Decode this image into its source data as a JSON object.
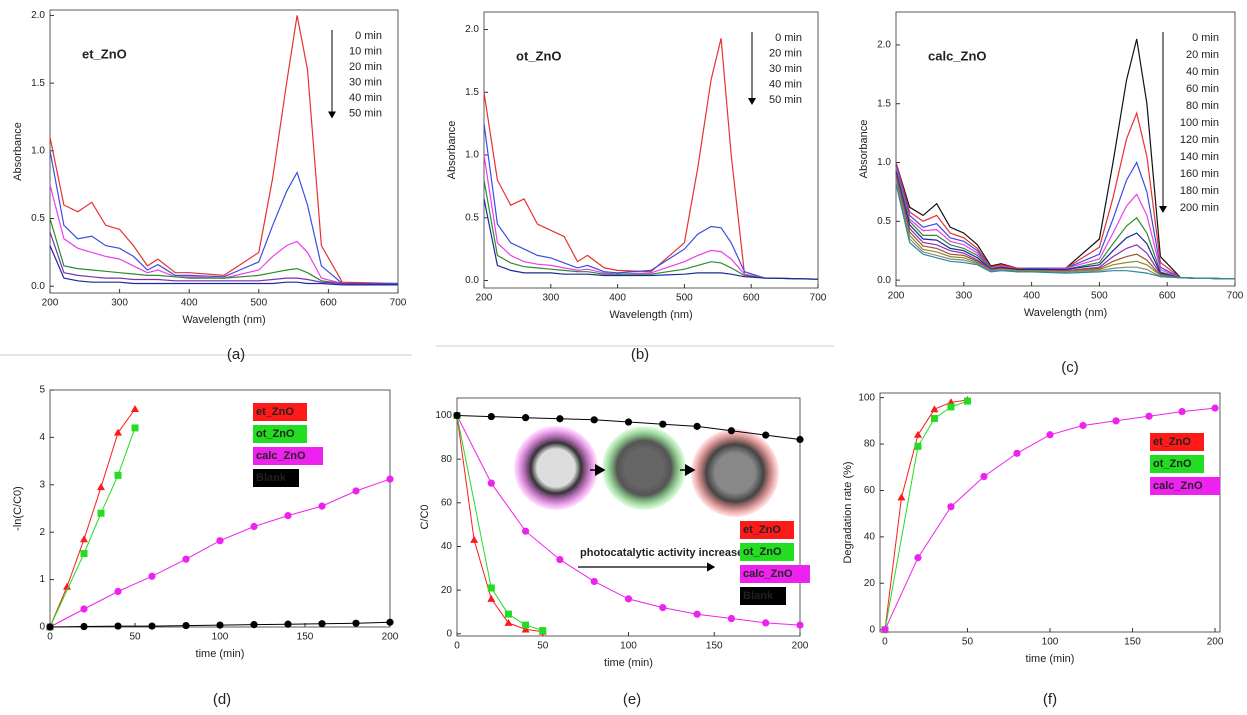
{
  "chart_data": [
    {
      "type": "line",
      "annotation": "et_ZnO",
      "caption": "(a)",
      "xlabel": "Wavelength (nm)",
      "ylabel": "Absorbance",
      "xlim": [
        200,
        700
      ],
      "ylim": [
        -0.05,
        2.04
      ],
      "xticks": [
        200,
        300,
        400,
        500,
        600,
        700
      ],
      "yticks": [
        {
          "value": 0,
          "label": "0.0"
        },
        0.5,
        {
          "value": 1,
          "label": "1.0"
        },
        1.5,
        {
          "value": 2,
          "label": "2.0"
        }
      ],
      "x": [
        200,
        220,
        240,
        260,
        280,
        300,
        320,
        340,
        355,
        380,
        400,
        450,
        500,
        520,
        540,
        555,
        570,
        590,
        620,
        700
      ],
      "series": [
        {
          "name": "0 min",
          "color": "#e8312f",
          "values": [
            1.1,
            0.6,
            0.55,
            0.62,
            0.45,
            0.42,
            0.3,
            0.15,
            0.2,
            0.1,
            0.1,
            0.08,
            0.25,
            0.8,
            1.5,
            2.0,
            1.6,
            0.3,
            0.03,
            0.02
          ]
        },
        {
          "name": "10 min",
          "color": "#3a4de0",
          "values": [
            1.0,
            0.45,
            0.35,
            0.37,
            0.3,
            0.28,
            0.22,
            0.12,
            0.16,
            0.08,
            0.08,
            0.07,
            0.18,
            0.45,
            0.7,
            0.84,
            0.6,
            0.15,
            0.02,
            0.02
          ]
        },
        {
          "name": "20 min",
          "color": "#ee3cee",
          "values": [
            0.75,
            0.35,
            0.28,
            0.25,
            0.22,
            0.2,
            0.15,
            0.1,
            0.12,
            0.07,
            0.07,
            0.06,
            0.12,
            0.22,
            0.3,
            0.33,
            0.25,
            0.06,
            0.02,
            0.01
          ]
        },
        {
          "name": "30 min",
          "color": "#2e8b2e",
          "values": [
            0.5,
            0.15,
            0.13,
            0.12,
            0.11,
            0.1,
            0.09,
            0.08,
            0.08,
            0.07,
            0.06,
            0.06,
            0.08,
            0.1,
            0.12,
            0.13,
            0.1,
            0.04,
            0.02,
            0.01
          ]
        },
        {
          "name": "40 min",
          "color": "#7a2fb5",
          "values": [
            0.4,
            0.1,
            0.08,
            0.07,
            0.06,
            0.06,
            0.05,
            0.05,
            0.05,
            0.04,
            0.04,
            0.04,
            0.04,
            0.05,
            0.06,
            0.06,
            0.05,
            0.03,
            0.02,
            0.01
          ]
        },
        {
          "name": "50 min",
          "color": "#1a2a9a",
          "values": [
            0.3,
            0.06,
            0.04,
            0.03,
            0.03,
            0.03,
            0.02,
            0.02,
            0.02,
            0.02,
            0.02,
            0.02,
            0.02,
            0.02,
            0.03,
            0.03,
            0.02,
            0.02,
            0.01,
            0.01
          ]
        }
      ]
    },
    {
      "type": "line",
      "annotation": "ot_ZnO",
      "caption": "(b)",
      "xlabel": "Wavelength (nm)",
      "ylabel": "Absorbance",
      "xlim": [
        200,
        700
      ],
      "ylim": [
        -0.06,
        2.14
      ],
      "xticks": [
        200,
        300,
        400,
        500,
        600,
        700
      ],
      "yticks": [
        {
          "value": 0,
          "label": "0.0"
        },
        0.5,
        {
          "value": 1,
          "label": "1.0"
        },
        1.5,
        {
          "value": 2,
          "label": "2.0"
        }
      ],
      "x": [
        200,
        220,
        240,
        260,
        280,
        300,
        320,
        340,
        355,
        380,
        400,
        450,
        500,
        520,
        540,
        555,
        570,
        590,
        620,
        700
      ],
      "series": [
        {
          "name": "0 min",
          "color": "#e8312f",
          "values": [
            1.5,
            0.8,
            0.6,
            0.65,
            0.45,
            0.4,
            0.35,
            0.15,
            0.2,
            0.1,
            0.08,
            0.07,
            0.3,
            0.9,
            1.6,
            1.93,
            1.0,
            0.05,
            0.02,
            0.01
          ]
        },
        {
          "name": "20 min",
          "color": "#3a4de0",
          "values": [
            1.25,
            0.45,
            0.3,
            0.25,
            0.2,
            0.18,
            0.14,
            0.1,
            0.12,
            0.07,
            0.06,
            0.08,
            0.25,
            0.37,
            0.43,
            0.42,
            0.3,
            0.07,
            0.02,
            0.01
          ]
        },
        {
          "name": "30 min",
          "color": "#ee3cee",
          "values": [
            1.0,
            0.3,
            0.2,
            0.15,
            0.13,
            0.12,
            0.1,
            0.08,
            0.09,
            0.06,
            0.05,
            0.06,
            0.15,
            0.2,
            0.24,
            0.23,
            0.17,
            0.05,
            0.02,
            0.01
          ]
        },
        {
          "name": "40 min",
          "color": "#2e8b2e",
          "values": [
            0.8,
            0.2,
            0.14,
            0.11,
            0.1,
            0.09,
            0.08,
            0.07,
            0.07,
            0.05,
            0.05,
            0.05,
            0.09,
            0.12,
            0.15,
            0.14,
            0.1,
            0.04,
            0.02,
            0.01
          ]
        },
        {
          "name": "50 min",
          "color": "#1a2a9a",
          "values": [
            0.65,
            0.12,
            0.08,
            0.06,
            0.06,
            0.06,
            0.05,
            0.05,
            0.05,
            0.04,
            0.04,
            0.04,
            0.05,
            0.06,
            0.06,
            0.06,
            0.05,
            0.03,
            0.02,
            0.01
          ]
        }
      ]
    },
    {
      "type": "line",
      "annotation": "calc_ZnO",
      "caption": "(c)",
      "xlabel": "Wavelength (nm)",
      "ylabel": "Absorbance",
      "xlim": [
        200,
        700
      ],
      "ylim": [
        -0.05,
        2.28
      ],
      "xticks": [
        200,
        300,
        400,
        500,
        600,
        700
      ],
      "yticks": [
        {
          "value": 0,
          "label": "0.0"
        },
        0.5,
        {
          "value": 1,
          "label": "1.0"
        },
        1.5,
        {
          "value": 2,
          "label": "2.0"
        }
      ],
      "x": [
        200,
        220,
        240,
        260,
        280,
        300,
        320,
        340,
        355,
        380,
        400,
        450,
        500,
        520,
        540,
        555,
        570,
        590,
        620,
        700
      ],
      "series": [
        {
          "name": "0 min",
          "color": "#111111",
          "values": [
            1.0,
            0.62,
            0.55,
            0.65,
            0.45,
            0.4,
            0.3,
            0.12,
            0.14,
            0.1,
            0.1,
            0.1,
            0.35,
            1.0,
            1.7,
            2.05,
            1.5,
            0.2,
            0.02,
            0.01
          ]
        },
        {
          "name": "20 min",
          "color": "#e8312f",
          "values": [
            1.0,
            0.58,
            0.5,
            0.55,
            0.4,
            0.36,
            0.27,
            0.11,
            0.13,
            0.1,
            0.1,
            0.1,
            0.28,
            0.7,
            1.2,
            1.42,
            1.05,
            0.15,
            0.02,
            0.01
          ]
        },
        {
          "name": "40 min",
          "color": "#3a4de0",
          "values": [
            0.98,
            0.55,
            0.45,
            0.48,
            0.36,
            0.33,
            0.25,
            0.1,
            0.12,
            0.09,
            0.1,
            0.1,
            0.22,
            0.52,
            0.85,
            1.0,
            0.75,
            0.11,
            0.02,
            0.01
          ]
        },
        {
          "name": "60 min",
          "color": "#ee3cee",
          "values": [
            0.96,
            0.52,
            0.42,
            0.43,
            0.33,
            0.3,
            0.23,
            0.1,
            0.12,
            0.09,
            0.09,
            0.1,
            0.18,
            0.4,
            0.63,
            0.73,
            0.55,
            0.09,
            0.02,
            0.01
          ]
        },
        {
          "name": "80 min",
          "color": "#2e8b2e",
          "values": [
            0.94,
            0.5,
            0.38,
            0.38,
            0.3,
            0.27,
            0.21,
            0.1,
            0.11,
            0.09,
            0.09,
            0.09,
            0.15,
            0.31,
            0.46,
            0.53,
            0.4,
            0.07,
            0.02,
            0.01
          ]
        },
        {
          "name": "100 min",
          "color": "#1a2a9a",
          "values": [
            0.92,
            0.47,
            0.35,
            0.34,
            0.27,
            0.25,
            0.19,
            0.09,
            0.11,
            0.09,
            0.09,
            0.09,
            0.13,
            0.25,
            0.36,
            0.4,
            0.31,
            0.06,
            0.02,
            0.01
          ]
        },
        {
          "name": "120 min",
          "color": "#8a2fb5",
          "values": [
            0.9,
            0.44,
            0.32,
            0.3,
            0.25,
            0.23,
            0.17,
            0.09,
            0.1,
            0.08,
            0.08,
            0.08,
            0.11,
            0.2,
            0.27,
            0.3,
            0.23,
            0.05,
            0.02,
            0.01
          ]
        },
        {
          "name": "140 min",
          "color": "#a0522d",
          "values": [
            0.88,
            0.41,
            0.29,
            0.27,
            0.22,
            0.21,
            0.16,
            0.08,
            0.1,
            0.08,
            0.08,
            0.08,
            0.1,
            0.16,
            0.2,
            0.22,
            0.17,
            0.04,
            0.02,
            0.01
          ]
        },
        {
          "name": "160 min",
          "color": "#8c8c2a",
          "values": [
            0.86,
            0.38,
            0.26,
            0.24,
            0.2,
            0.19,
            0.15,
            0.08,
            0.09,
            0.08,
            0.08,
            0.07,
            0.09,
            0.13,
            0.15,
            0.16,
            0.13,
            0.04,
            0.02,
            0.01
          ]
        },
        {
          "name": "180 min",
          "color": "#888888",
          "values": [
            0.84,
            0.35,
            0.24,
            0.21,
            0.18,
            0.17,
            0.14,
            0.08,
            0.09,
            0.07,
            0.07,
            0.07,
            0.08,
            0.1,
            0.11,
            0.11,
            0.09,
            0.03,
            0.02,
            0.01
          ]
        },
        {
          "name": "200 min",
          "color": "#2a8a9a",
          "values": [
            0.82,
            0.32,
            0.22,
            0.19,
            0.16,
            0.15,
            0.13,
            0.07,
            0.08,
            0.07,
            0.07,
            0.06,
            0.07,
            0.08,
            0.08,
            0.07,
            0.06,
            0.03,
            0.02,
            0.01
          ]
        }
      ]
    },
    {
      "type": "scatter",
      "caption": "(d)",
      "xlabel": "time (min)",
      "ylabel": "-ln(C/C0)",
      "xlim": [
        0,
        200
      ],
      "ylim": [
        0,
        5
      ],
      "xticks": [
        0,
        50,
        100,
        150,
        200
      ],
      "yticks": [
        0,
        1,
        2,
        3,
        4,
        5
      ],
      "series": [
        {
          "name": "et_ZnO",
          "color": "#ff1a1a",
          "marker": "triangle",
          "x": [
            0,
            10,
            20,
            30,
            40,
            50
          ],
          "values": [
            0,
            0.85,
            1.85,
            2.95,
            4.1,
            4.6
          ]
        },
        {
          "name": "ot_ZnO",
          "color": "#22dd22",
          "marker": "square",
          "x": [
            0,
            20,
            30,
            40,
            50
          ],
          "values": [
            0,
            1.55,
            2.4,
            3.2,
            4.2
          ]
        },
        {
          "name": "calc_ZnO",
          "color": "#ee22ee",
          "marker": "circle",
          "x": [
            0,
            20,
            40,
            60,
            80,
            100,
            120,
            140,
            160,
            180,
            200
          ],
          "values": [
            0,
            0.38,
            0.75,
            1.07,
            1.43,
            1.82,
            2.12,
            2.35,
            2.55,
            2.87,
            3.12
          ]
        },
        {
          "name": "Blank",
          "color": "#000000",
          "marker": "circle",
          "x": [
            0,
            20,
            40,
            60,
            80,
            100,
            120,
            140,
            160,
            180,
            200
          ],
          "values": [
            0,
            0.01,
            0.02,
            0.02,
            0.03,
            0.04,
            0.05,
            0.06,
            0.07,
            0.08,
            0.1
          ]
        }
      ]
    },
    {
      "type": "scatter",
      "caption": "(e)",
      "xlabel": "time (min)",
      "ylabel": "C/C0",
      "note": "photocatalytic activity increases",
      "xlim": [
        0,
        200
      ],
      "ylim": [
        -1,
        108
      ],
      "xticks": [
        0,
        50,
        100,
        150,
        200
      ],
      "yticks": [
        0,
        20,
        40,
        60,
        80,
        100
      ],
      "series": [
        {
          "name": "et_ZnO",
          "color": "#ff1a1a",
          "marker": "triangle",
          "x": [
            0,
            10,
            20,
            30,
            40,
            50
          ],
          "values": [
            100,
            43,
            16,
            5,
            2,
            1
          ]
        },
        {
          "name": "ot_ZnO",
          "color": "#22dd22",
          "marker": "square",
          "x": [
            0,
            20,
            30,
            40,
            50
          ],
          "values": [
            100,
            21,
            9,
            4,
            1.5
          ]
        },
        {
          "name": "calc_ZnO",
          "color": "#ee22ee",
          "marker": "circle",
          "x": [
            0,
            20,
            40,
            60,
            80,
            100,
            120,
            140,
            160,
            180,
            200
          ],
          "values": [
            100,
            69,
            47,
            34,
            24,
            16,
            12,
            9,
            7,
            5,
            4
          ]
        },
        {
          "name": "Blank",
          "color": "#000000",
          "marker": "circle",
          "x": [
            0,
            20,
            40,
            60,
            80,
            100,
            120,
            140,
            160,
            180,
            200
          ],
          "values": [
            100,
            99.5,
            99,
            98.5,
            98,
            97,
            96,
            95,
            93,
            91,
            89
          ]
        }
      ]
    },
    {
      "type": "scatter",
      "caption": "(f)",
      "xlabel": "time (min)",
      "ylabel": "Degradation rate (%)",
      "xlim": [
        -3,
        203
      ],
      "ylim": [
        -1,
        102
      ],
      "xticks": [
        0,
        50,
        100,
        150,
        200
      ],
      "yticks": [
        0,
        20,
        40,
        60,
        80,
        100
      ],
      "series": [
        {
          "name": "et_ZnO",
          "color": "#ff1a1a",
          "marker": "triangle",
          "x": [
            0,
            10,
            20,
            30,
            40,
            50
          ],
          "values": [
            0,
            57,
            84,
            95,
            98,
            99
          ]
        },
        {
          "name": "ot_ZnO",
          "color": "#22dd22",
          "marker": "square",
          "x": [
            0,
            20,
            30,
            40,
            50
          ],
          "values": [
            0,
            79,
            91,
            96,
            98.5
          ]
        },
        {
          "name": "calc_ZnO",
          "color": "#ee22ee",
          "marker": "circle",
          "x": [
            0,
            20,
            40,
            60,
            80,
            100,
            120,
            140,
            160,
            180,
            200
          ],
          "values": [
            0,
            31,
            53,
            66,
            76,
            84,
            88,
            90,
            92,
            94,
            95.5
          ]
        }
      ]
    }
  ]
}
